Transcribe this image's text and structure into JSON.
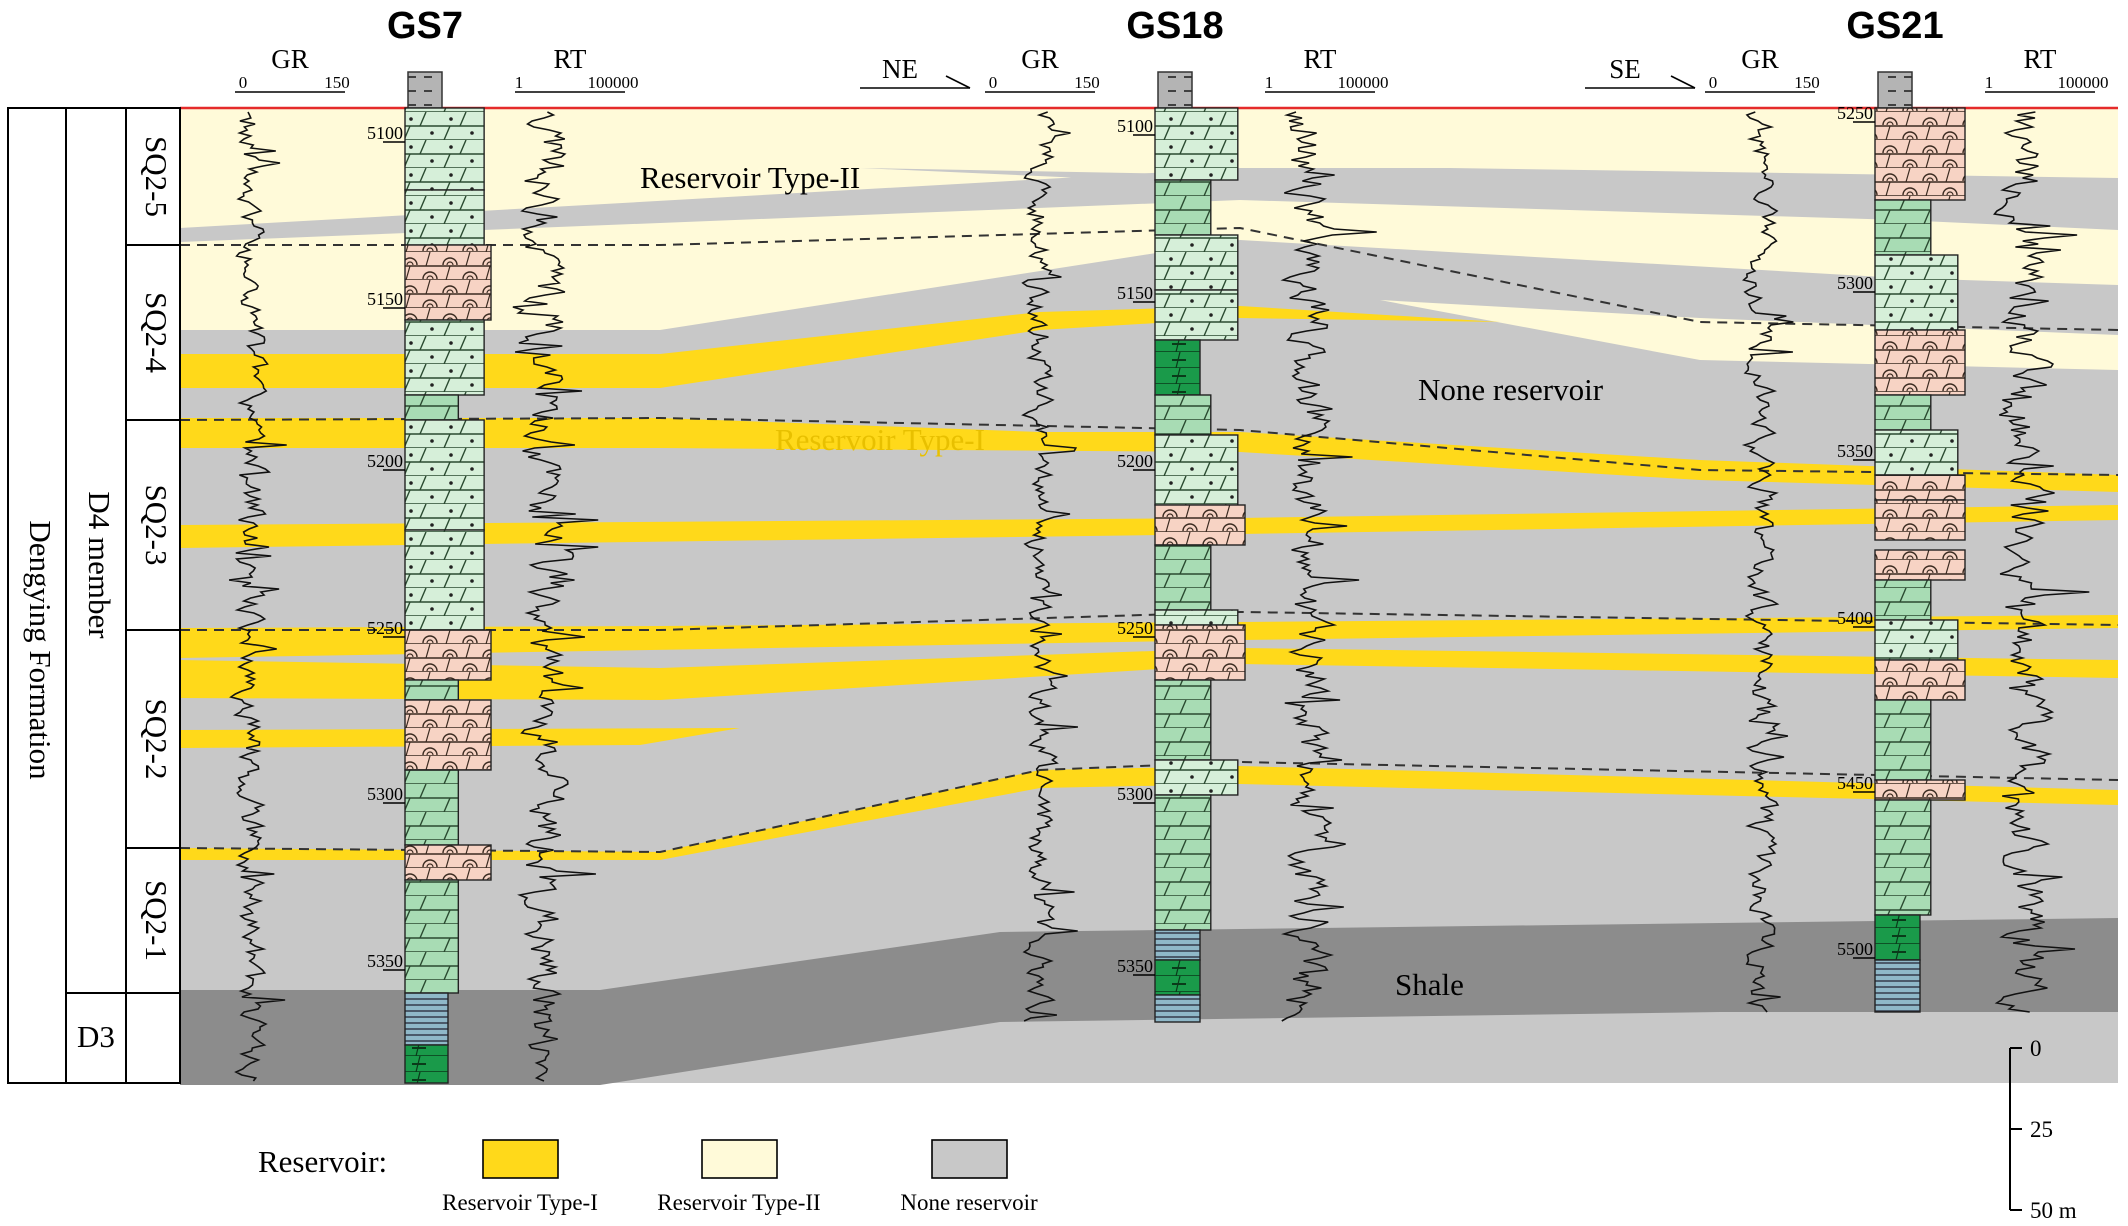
{
  "wells": [
    {
      "name": "GS7",
      "depths": [
        "5100",
        "5150",
        "5200",
        "5250",
        "5300",
        "5350"
      ]
    },
    {
      "name": "GS18",
      "depths": [
        "5100",
        "5150",
        "5200",
        "5250",
        "5300",
        "5350"
      ]
    },
    {
      "name": "GS21",
      "depths": [
        "5250",
        "5300",
        "5350",
        "5400",
        "5450",
        "5500"
      ]
    }
  ],
  "logs": {
    "gr": {
      "label": "GR",
      "min": "0",
      "max": "150"
    },
    "rt": {
      "label": "RT",
      "min": "1",
      "max": "100000"
    }
  },
  "directions": [
    "NE",
    "SE"
  ],
  "stratigraphy": {
    "formation": "Dengying Formation",
    "member": "D4 member",
    "lower_member": "D3",
    "sequences": [
      "SQ2-5",
      "SQ2-4",
      "SQ2-3",
      "SQ2-2",
      "SQ2-1"
    ]
  },
  "annotations": {
    "type2": "Reservoir Type-II",
    "type1": "Reservoir Type-I",
    "none": "None reservoir",
    "shale": "Shale"
  },
  "legend": {
    "title": "Reservoir:",
    "items": [
      {
        "label": "Reservoir Type-I",
        "color": "#ffd91a"
      },
      {
        "label": "Reservoir Type-II",
        "color": "#fffad9"
      },
      {
        "label": "None reservoir",
        "color": "#c8c8c8"
      }
    ]
  },
  "scale": {
    "ticks": [
      "0",
      "25",
      "50 m"
    ]
  },
  "colors": {
    "type1": "#ffd91a",
    "type2": "#fffad9",
    "none": "#c8c8c8",
    "shale": "#8c8c8c",
    "dolomite": "#a8dcb4",
    "sandy_dolomite": "#d6efd9",
    "algal": "#f7d3c4",
    "mud_dolomite": "#1a9a4a",
    "shale_lith": "#8fb8c8",
    "top_line": "#e52b2b"
  }
}
